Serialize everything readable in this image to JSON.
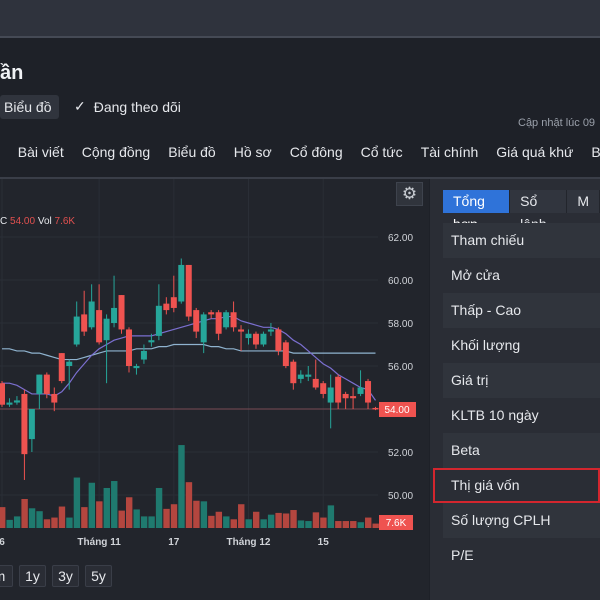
{
  "header": {
    "title": "ần",
    "chart_chip": "Biểu đồ",
    "follow_label": "Đang theo dõi",
    "updated_label": "Cập nhật lúc  09"
  },
  "nav": [
    "h",
    "Bài viết",
    "Cộng đồng",
    "Biểu đồ",
    "Hồ sơ",
    "Cổ đông",
    "Cổ tức",
    "Tài chính",
    "Giá quá khứ",
    "Báo"
  ],
  "legend": {
    "prefix": "C",
    "close": "54.00",
    "vol_label": "Vol",
    "vol": "7.6K"
  },
  "range_buttons": [
    "m",
    "1y",
    "3y",
    "5y"
  ],
  "panel": {
    "tabs": [
      "Tổng hợp",
      "Sổ lệnh",
      "M"
    ],
    "active_tab": 0,
    "rows": [
      "Tham chiếu",
      "Mở cửa",
      "Thấp - Cao",
      "Khối lượng",
      "Giá trị",
      "KLTB 10 ngày",
      "Beta",
      "Thị giá vốn",
      "Số lượng CPLH",
      "P/E"
    ],
    "highlighted_row": 7,
    "highlight_color": "#d3262e"
  },
  "colors": {
    "up": "#26a69a",
    "down": "#ef5350",
    "accent": "#2f73d9",
    "ma_short": "#7b6fd0",
    "ma_long": "#8fb3cf"
  },
  "chart_data": {
    "type": "candlestick",
    "y_ticks": [
      "62.00",
      "60.00",
      "58.00",
      "56.00",
      "54.00",
      "52.00",
      "50.00"
    ],
    "ylim": [
      49.3,
      63
    ],
    "last_price_label": "54.00",
    "last_volume_label": "7.6K",
    "x_ticks": [
      {
        "index": 0,
        "label": "6"
      },
      {
        "index": 13,
        "label": "Tháng 11"
      },
      {
        "index": 23,
        "label": "17"
      },
      {
        "index": 33,
        "label": "Tháng 12"
      },
      {
        "index": 43,
        "label": "15"
      }
    ],
    "candles": [
      [
        55.2,
        54.2,
        55.3,
        54.1
      ],
      [
        54.2,
        54.3,
        54.5,
        54.1
      ],
      [
        54.3,
        54.4,
        54.6,
        54.2
      ],
      [
        54.7,
        51.9,
        54.9,
        50.7
      ],
      [
        52.6,
        54.0,
        54.0,
        52.0
      ],
      [
        54.7,
        55.6,
        55.6,
        54.0
      ],
      [
        55.6,
        54.7,
        55.7,
        54.5
      ],
      [
        54.7,
        54.3,
        55.0,
        53.9
      ],
      [
        56.6,
        55.3,
        56.6,
        55.2
      ],
      [
        56.0,
        56.2,
        56.3,
        54.9
      ],
      [
        57.0,
        58.3,
        59.0,
        56.9
      ],
      [
        58.4,
        57.6,
        59.5,
        57.4
      ],
      [
        57.8,
        59.0,
        59.8,
        57.7
      ],
      [
        58.6,
        57.1,
        59.8,
        57.0
      ],
      [
        57.2,
        58.2,
        58.4,
        55.2
      ],
      [
        58.0,
        58.7,
        60.2,
        57.8
      ],
      [
        59.3,
        57.7,
        59.3,
        57.5
      ],
      [
        57.7,
        56.0,
        57.8,
        55.7
      ],
      [
        55.9,
        56.0,
        56.1,
        55.6
      ],
      [
        56.3,
        56.7,
        57.0,
        56.1
      ],
      [
        57.1,
        57.2,
        57.5,
        56.9
      ],
      [
        57.4,
        58.8,
        59.8,
        57.2
      ],
      [
        58.9,
        58.6,
        59.2,
        58.4
      ],
      [
        59.2,
        58.7,
        60.2,
        58.5
      ],
      [
        59.0,
        60.7,
        61.0,
        58.9
      ],
      [
        60.7,
        58.3,
        60.7,
        58.1
      ],
      [
        58.6,
        57.6,
        58.7,
        57.3
      ],
      [
        57.1,
        58.4,
        58.5,
        56.6
      ],
      [
        58.5,
        58.4,
        58.6,
        58.2
      ],
      [
        58.5,
        57.5,
        58.6,
        57.2
      ],
      [
        57.8,
        58.5,
        58.6,
        57.7
      ],
      [
        58.5,
        57.8,
        59.0,
        57.6
      ],
      [
        57.7,
        57.6,
        57.9,
        56.7
      ],
      [
        57.3,
        57.5,
        57.7,
        57.0
      ],
      [
        57.5,
        57.0,
        57.6,
        56.8
      ],
      [
        57.0,
        57.5,
        57.6,
        56.9
      ],
      [
        57.6,
        57.7,
        58.0,
        57.4
      ],
      [
        57.7,
        56.7,
        57.8,
        56.5
      ],
      [
        57.1,
        56.0,
        57.2,
        55.9
      ],
      [
        56.2,
        55.2,
        56.3,
        54.9
      ],
      [
        55.4,
        55.6,
        55.8,
        55.2
      ],
      [
        55.5,
        55.6,
        56.0,
        55.3
      ],
      [
        55.4,
        55.0,
        56.3,
        54.9
      ],
      [
        55.2,
        54.7,
        55.3,
        54.5
      ],
      [
        54.3,
        55.0,
        55.6,
        53.1
      ],
      [
        55.5,
        54.3,
        55.6,
        54.0
      ],
      [
        54.7,
        54.5,
        54.8,
        54.0
      ],
      [
        54.6,
        54.5,
        55.0,
        54.0
      ],
      [
        54.7,
        55.0,
        55.8,
        54.6
      ],
      [
        55.3,
        54.3,
        55.4,
        54.0
      ],
      [
        54.05,
        54.0,
        54.1,
        53.95
      ]
    ],
    "volumes_k": [
      36,
      14,
      20,
      50,
      34,
      29,
      15,
      18,
      37,
      18,
      87,
      36,
      78,
      46,
      69,
      81,
      30,
      53,
      32,
      20,
      20,
      69,
      33,
      41,
      143,
      79,
      47,
      46,
      21,
      28,
      20,
      15,
      41,
      15,
      28,
      15,
      23,
      26,
      25,
      31,
      13,
      12,
      27,
      18,
      39,
      12,
      12,
      12,
      10,
      18,
      7.6
    ],
    "ma_short": [
      55.2,
      55.2,
      55.1,
      54.9,
      54.7,
      54.7,
      54.7,
      54.6,
      54.8,
      55.2,
      55.7,
      56.1,
      56.5,
      56.8,
      57.0,
      57.2,
      57.3,
      57.4,
      57.4,
      57.4,
      57.4,
      57.5,
      57.6,
      57.7,
      57.8,
      57.9,
      58.0,
      58.1,
      58.2,
      58.2,
      58.3,
      58.3,
      58.1,
      58.0,
      57.9,
      57.8,
      57.8,
      57.7,
      57.5,
      57.2,
      57.0,
      56.7,
      56.4,
      56.1,
      55.9,
      55.6,
      55.4,
      55.2,
      55.0,
      54.9,
      54.4
    ],
    "ma_long": [
      56.8,
      56.8,
      56.7,
      56.7,
      56.6,
      56.6,
      56.5,
      56.4,
      56.3,
      56.3,
      56.3,
      56.4,
      56.5,
      56.6,
      56.7,
      56.7,
      56.7,
      56.7,
      56.8,
      56.8,
      56.8,
      56.9,
      56.9,
      57.0,
      57.0,
      57.0,
      57.0,
      57.0,
      56.9,
      56.9,
      56.8,
      56.8,
      56.7,
      56.7,
      56.7,
      56.7,
      56.7,
      56.7,
      56.7,
      56.6,
      56.6,
      56.6,
      56.6,
      56.6,
      56.6,
      56.6,
      56.6,
      56.6,
      56.6,
      56.6,
      56.6
    ]
  }
}
